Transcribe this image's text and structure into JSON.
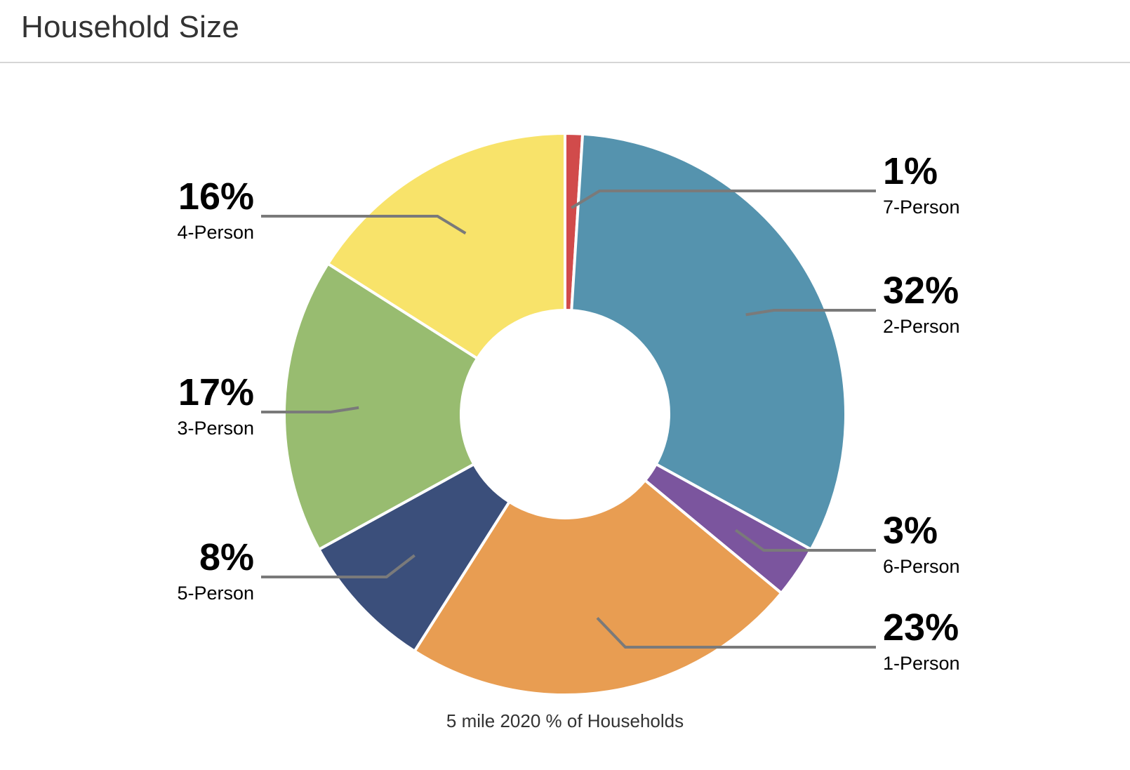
{
  "header": {
    "title": "Household Size"
  },
  "chart_data": {
    "type": "pie",
    "variant": "donut",
    "caption": "5 mile 2020 % of Households",
    "unit": "%",
    "slices": [
      {
        "label": "7-Person",
        "value": 1,
        "display": "1%",
        "color": "#d14b4b",
        "label_side": "right"
      },
      {
        "label": "2-Person",
        "value": 32,
        "display": "32%",
        "color": "#5593ae",
        "label_side": "right"
      },
      {
        "label": "6-Person",
        "value": 3,
        "display": "3%",
        "color": "#7b559e",
        "label_side": "right"
      },
      {
        "label": "1-Person",
        "value": 23,
        "display": "23%",
        "color": "#e89d52",
        "label_side": "right"
      },
      {
        "label": "5-Person",
        "value": 8,
        "display": "8%",
        "color": "#3b4f7b",
        "label_side": "left"
      },
      {
        "label": "3-Person",
        "value": 17,
        "display": "17%",
        "color": "#98bc70",
        "label_side": "left"
      },
      {
        "label": "4-Person",
        "value": 16,
        "display": "16%",
        "color": "#f8e36a",
        "label_side": "left"
      }
    ],
    "legend": "none",
    "labels": "outside with leader lines"
  }
}
